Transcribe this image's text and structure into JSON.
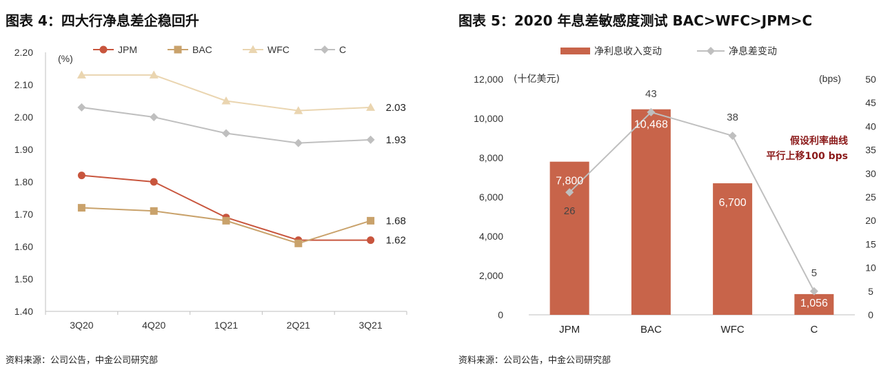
{
  "left": {
    "title": "图表 4：四大行净息差企稳回升",
    "source": "资料来源：公司公告，中金公司研究部",
    "chart_data": {
      "type": "line",
      "unit_label": "(%)",
      "categories": [
        "3Q20",
        "4Q20",
        "1Q21",
        "2Q21",
        "3Q21"
      ],
      "ylim": [
        1.4,
        2.2
      ],
      "yticks": [
        "2.20",
        "2.10",
        "2.00",
        "1.90",
        "1.80",
        "1.70",
        "1.60",
        "1.50",
        "1.40"
      ],
      "grid": false,
      "legend_position": "top",
      "series": [
        {
          "name": "JPM",
          "values": [
            1.82,
            1.8,
            1.69,
            1.62,
            1.62
          ],
          "color": "#C8553D",
          "marker": "circle",
          "end_label": "1.62"
        },
        {
          "name": "BAC",
          "values": [
            1.72,
            1.71,
            1.68,
            1.61,
            1.68
          ],
          "color": "#C9A26B",
          "marker": "square",
          "end_label": "1.68"
        },
        {
          "name": "WFC",
          "values": [
            2.13,
            2.13,
            2.05,
            2.02,
            2.03
          ],
          "color": "#EAD5B0",
          "marker": "triangle",
          "end_label": "2.03"
        },
        {
          "name": "C",
          "values": [
            2.03,
            2.0,
            1.95,
            1.92,
            1.93
          ],
          "color": "#BFBFBF",
          "marker": "diamond",
          "end_label": "1.93"
        }
      ]
    }
  },
  "right": {
    "title": "图表 5：2020 年息差敏感度测试 BAC>WFC>JPM>C",
    "source": "资料来源：公司公告，中金公司研究部",
    "chart_data": {
      "type": "bar",
      "categories": [
        "JPM",
        "BAC",
        "WFC",
        "C"
      ],
      "left_axis": {
        "unit_label": "(十亿美元)",
        "ylim": [
          0,
          12000
        ],
        "ticks": [
          "12,000",
          "10,000",
          "8,000",
          "6,000",
          "4,000",
          "2,000",
          "0"
        ]
      },
      "right_axis": {
        "unit_label": "(bps)",
        "ylim": [
          0,
          50
        ],
        "ticks": [
          "50",
          "45",
          "40",
          "35",
          "30",
          "25",
          "20",
          "15",
          "10",
          "5",
          "0"
        ]
      },
      "legend_position": "top",
      "bar_series": {
        "name": "净利息收入变动",
        "values": [
          7800,
          10468,
          6700,
          1056
        ],
        "labels": [
          "7,800",
          "10,468",
          "6,700",
          "1,056"
        ],
        "color": "#C8644A"
      },
      "line_series": {
        "name": "净息差变动",
        "values": [
          26,
          43,
          38,
          5
        ],
        "labels": [
          "26",
          "43",
          "38",
          "5"
        ],
        "color": "#BFBFBF"
      },
      "annotation": [
        "假设利率曲线",
        "平行上移100  bps"
      ],
      "annotation_color": "#8B1A1A"
    }
  }
}
